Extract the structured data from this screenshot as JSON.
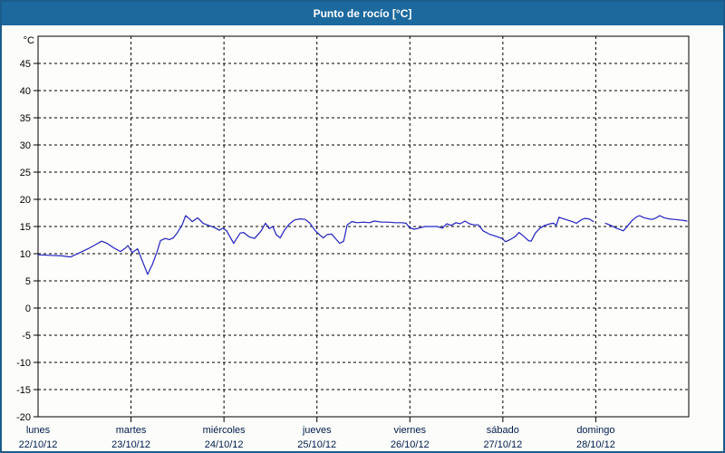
{
  "window": {
    "title": "Punto de rocío [°C]"
  },
  "colors": {
    "titlebar_bg": "#1c699e",
    "title_text": "#ffffff",
    "window_border": "#1a5c8c",
    "window_bg": "#fcfdfa",
    "plot_bg": "#fdfdfb",
    "axis": "#000000",
    "grid": "#000000",
    "line": "#2222c0",
    "y_label": "#000000",
    "x_label": "#001a4d"
  },
  "chart_data": {
    "type": "line",
    "title": "Punto de rocío [°C]",
    "y_unit_label": "°C",
    "ylim": [
      -20,
      50
    ],
    "y_ticks": [
      45,
      40,
      35,
      30,
      25,
      20,
      15,
      10,
      5,
      0,
      -5,
      -10,
      -15,
      -20
    ],
    "grid": "dashed",
    "legend": "none",
    "x_range_hours": [
      0,
      168
    ],
    "day_gridlines_hours": [
      24,
      48,
      72,
      96,
      120,
      144
    ],
    "x_days": [
      {
        "name": "lunes",
        "date": "22/10/12"
      },
      {
        "name": "martes",
        "date": "23/10/12"
      },
      {
        "name": "miércoles",
        "date": "24/10/12"
      },
      {
        "name": "jueves",
        "date": "25/10/12"
      },
      {
        "name": "viernes",
        "date": "26/10/12"
      },
      {
        "name": "sábado",
        "date": "27/10/12"
      },
      {
        "name": "domingo",
        "date": "28/10/12"
      }
    ],
    "series": [
      {
        "name": "Punto de rocío",
        "color": "#2222c0",
        "points": [
          [
            0,
            9.8
          ],
          [
            3,
            9.7
          ],
          [
            6.1,
            9.6
          ],
          [
            8.4,
            9.4
          ],
          [
            10.8,
            10.2
          ],
          [
            12.9,
            10.9
          ],
          [
            14.7,
            11.6
          ],
          [
            16.4,
            12.3
          ],
          [
            17.8,
            11.9
          ],
          [
            19.7,
            11.0
          ],
          [
            21.3,
            10.4
          ],
          [
            22.5,
            11.0
          ],
          [
            23.2,
            11.5
          ],
          [
            24.3,
            10.2
          ],
          [
            25.7,
            10.9
          ],
          [
            26.9,
            8.7
          ],
          [
            28.3,
            6.2
          ],
          [
            29.5,
            8.0
          ],
          [
            30.7,
            10.3
          ],
          [
            31.6,
            12.4
          ],
          [
            32.8,
            12.8
          ],
          [
            33.9,
            12.6
          ],
          [
            34.9,
            12.9
          ],
          [
            36,
            13.9
          ],
          [
            37.2,
            15.3
          ],
          [
            38.1,
            17.0
          ],
          [
            39.1,
            16.4
          ],
          [
            39.8,
            15.9
          ],
          [
            41.2,
            16.6
          ],
          [
            42.6,
            15.6
          ],
          [
            44,
            15.2
          ],
          [
            45.6,
            14.8
          ],
          [
            46.8,
            14.3
          ],
          [
            47.7,
            14.7
          ],
          [
            48.7,
            14.2
          ],
          [
            50.5,
            11.9
          ],
          [
            52.2,
            13.8
          ],
          [
            53.1,
            13.9
          ],
          [
            54.5,
            13.1
          ],
          [
            55.9,
            12.8
          ],
          [
            57.6,
            14.2
          ],
          [
            58.7,
            15.6
          ],
          [
            59.7,
            14.6
          ],
          [
            60.6,
            15.0
          ],
          [
            61.5,
            13.5
          ],
          [
            62.5,
            12.9
          ],
          [
            63.6,
            14.3
          ],
          [
            64.8,
            15.4
          ],
          [
            66.2,
            16.2
          ],
          [
            67.6,
            16.4
          ],
          [
            69,
            16.3
          ],
          [
            70.2,
            15.6
          ],
          [
            71.6,
            14.2
          ],
          [
            72.8,
            13.4
          ],
          [
            73.7,
            12.9
          ],
          [
            74.6,
            13.5
          ],
          [
            75.8,
            13.6
          ],
          [
            77,
            12.6
          ],
          [
            77.9,
            11.9
          ],
          [
            78.9,
            12.3
          ],
          [
            79.8,
            15.3
          ],
          [
            81,
            15.9
          ],
          [
            82.4,
            15.7
          ],
          [
            84,
            15.8
          ],
          [
            85.6,
            15.7
          ],
          [
            86.8,
            16.0
          ],
          [
            88.7,
            15.8
          ],
          [
            90.5,
            15.8
          ],
          [
            92.2,
            15.7
          ],
          [
            93.8,
            15.7
          ],
          [
            95,
            15.6
          ],
          [
            95.9,
            14.8
          ],
          [
            97.1,
            14.5
          ],
          [
            98.3,
            14.7
          ],
          [
            99.9,
            15.0
          ],
          [
            101.5,
            15.0
          ],
          [
            103,
            15.0
          ],
          [
            104.4,
            14.7
          ],
          [
            105.5,
            15.5
          ],
          [
            106.7,
            15.2
          ],
          [
            107.9,
            15.7
          ],
          [
            109,
            15.5
          ],
          [
            110.2,
            16.0
          ],
          [
            111.4,
            15.5
          ],
          [
            112.5,
            15.3
          ],
          [
            113.7,
            15.3
          ],
          [
            114.9,
            14.2
          ],
          [
            116.5,
            13.6
          ],
          [
            118.2,
            13.2
          ],
          [
            119.8,
            12.8
          ],
          [
            120.7,
            12.2
          ],
          [
            121.9,
            12.6
          ],
          [
            123.1,
            13.1
          ],
          [
            124.2,
            13.9
          ],
          [
            125.4,
            13.2
          ],
          [
            126.6,
            12.4
          ],
          [
            127.3,
            12.3
          ],
          [
            128.4,
            13.8
          ],
          [
            129.6,
            14.7
          ],
          [
            130.8,
            15.2
          ],
          [
            132.2,
            15.5
          ],
          [
            133.1,
            15.6
          ],
          [
            133.8,
            15.2
          ],
          [
            134.5,
            16.7
          ],
          [
            135.7,
            16.4
          ],
          [
            137.1,
            16.1
          ],
          [
            138.3,
            15.8
          ],
          [
            139,
            15.6
          ],
          [
            140.2,
            16.2
          ],
          [
            141.1,
            16.5
          ],
          [
            142.3,
            16.4
          ],
          [
            143.4,
            15.9
          ],
          null,
          [
            146.5,
            15.6
          ],
          [
            147.9,
            15.2
          ],
          [
            149.3,
            14.7
          ],
          [
            150.4,
            14.4
          ],
          [
            151.1,
            14.2
          ],
          [
            152.3,
            15.2
          ],
          [
            153.5,
            16.2
          ],
          [
            154.6,
            16.8
          ],
          [
            155.3,
            17.0
          ],
          [
            156.5,
            16.6
          ],
          [
            157.7,
            16.4
          ],
          [
            158.6,
            16.3
          ],
          [
            159.6,
            16.6
          ],
          [
            160.5,
            17.0
          ],
          [
            161.7,
            16.6
          ],
          [
            162.9,
            16.4
          ],
          [
            164.3,
            16.3
          ],
          [
            165.7,
            16.2
          ],
          [
            166.8,
            16.1
          ],
          [
            167.5,
            16.0
          ]
        ]
      }
    ]
  }
}
